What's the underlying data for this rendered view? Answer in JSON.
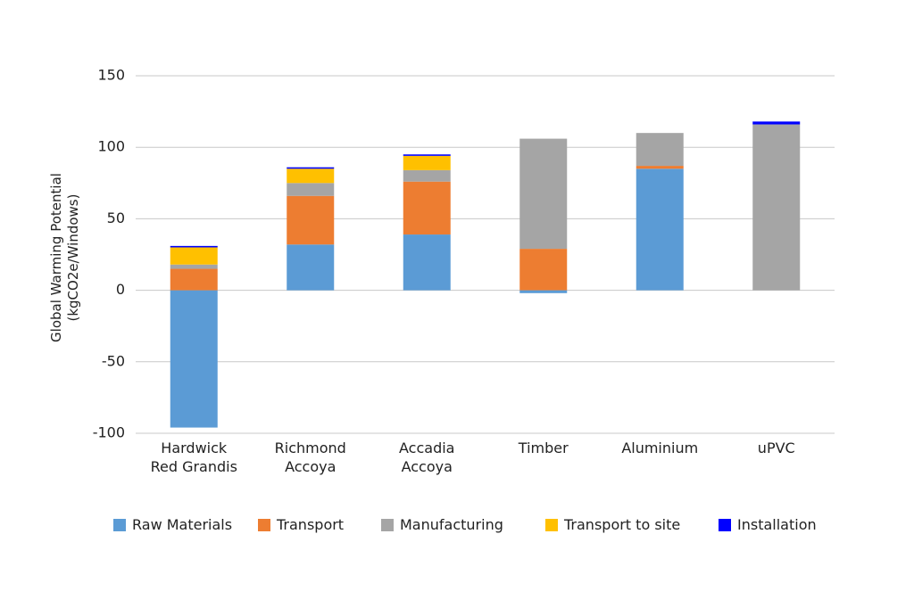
{
  "chart_data": {
    "type": "stacked_bar",
    "y_label": "Global Warming Potential\n(kgCO2e/Windows)",
    "categories": [
      "Hardwick\nRed Grandis",
      "Richmond\nAccoya",
      "Accadia\nAccoya",
      "Timber",
      "Aluminium",
      "uPVC"
    ],
    "series": [
      {
        "name": "Raw Materials",
        "color": "#5b9bd5",
        "values": [
          -96,
          32,
          39,
          -2,
          85,
          0
        ]
      },
      {
        "name": "Transport",
        "color": "#ed7d31",
        "values": [
          15,
          34,
          37,
          29,
          2,
          0
        ]
      },
      {
        "name": "Manufacturing",
        "color": "#a5a5a5",
        "values": [
          3,
          9,
          8,
          77,
          23,
          116
        ]
      },
      {
        "name": "Transport to site",
        "color": "#ffc000",
        "values": [
          12,
          10,
          10,
          0,
          0,
          0
        ]
      },
      {
        "name": "Installation",
        "color": "#0000ff",
        "values": [
          1,
          1,
          1,
          0,
          0,
          2
        ]
      }
    ],
    "ylim": [
      -100,
      150
    ],
    "yticks": [
      -100,
      -50,
      0,
      50,
      100,
      150
    ],
    "grid": true,
    "legend": "bottom"
  }
}
